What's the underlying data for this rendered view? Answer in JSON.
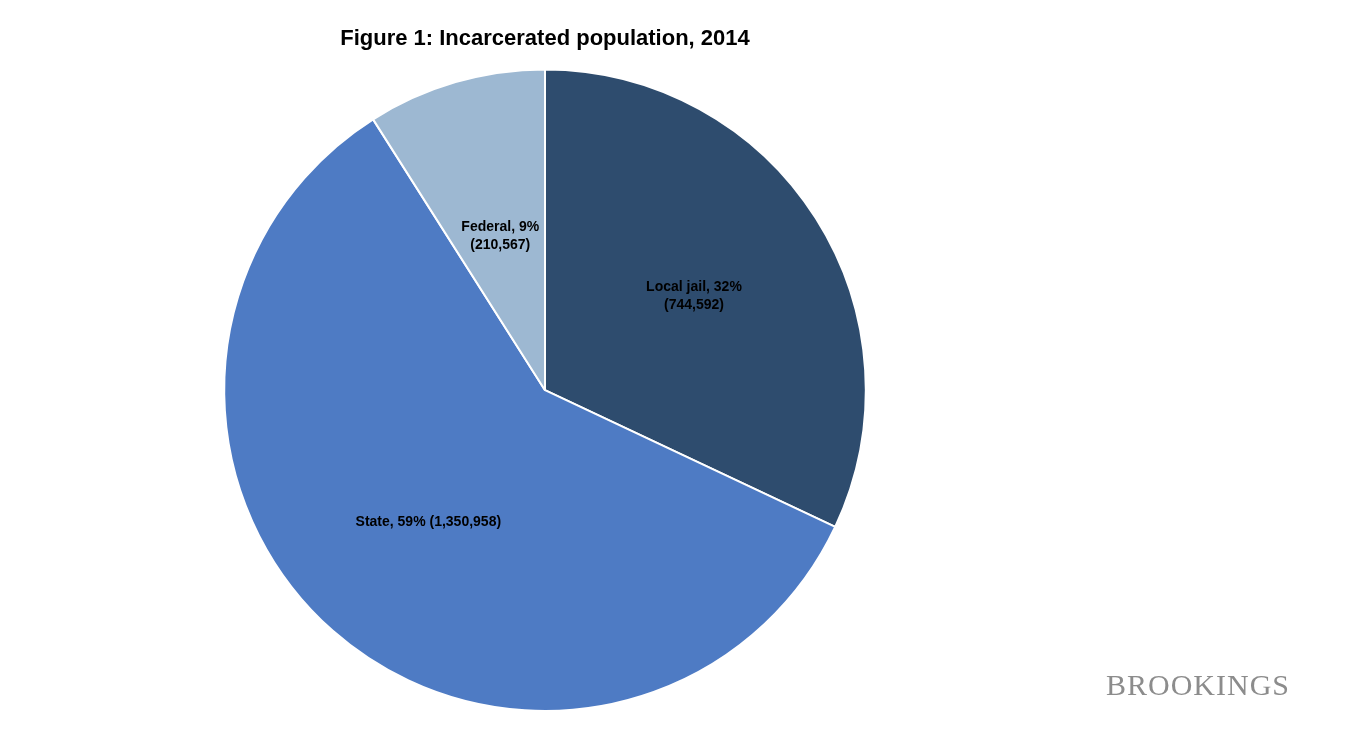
{
  "chart_data": {
    "type": "pie",
    "title": "Figure 1: Incarcerated population, 2014",
    "categories": [
      "Local jail",
      "State",
      "Federal"
    ],
    "values": [
      32,
      59,
      9
    ],
    "value_labels": [
      "Local jail, 32%\n(744,592)",
      "State, 59% (1,350,958)",
      "Federal, 9%\n(210,567)"
    ],
    "colors": [
      "#2E4C6E",
      "#4E7BC4",
      "#9DB8D2"
    ],
    "data_labels": true,
    "annotations": [
      "BROOKINGS"
    ]
  }
}
